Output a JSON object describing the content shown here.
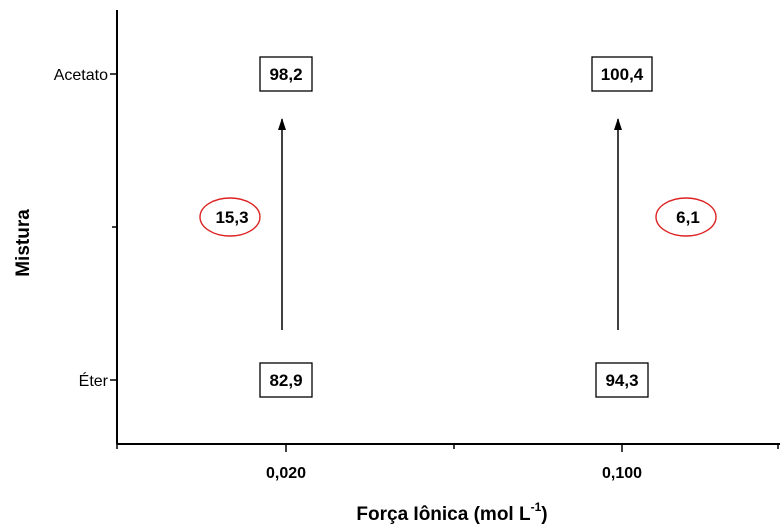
{
  "chart_data": {
    "type": "annotated-diagram",
    "xlabel": "Força Iônica (mol L",
    "xlabel_sup": "-1",
    "xlabel_close": ")",
    "ylabel": "Mistura",
    "x_categories": [
      "0,020",
      "0,100"
    ],
    "y_categories": [
      "Éter",
      "Acetato"
    ],
    "boxes": [
      {
        "x": "0,020",
        "y": "Acetato",
        "value": "98,2"
      },
      {
        "x": "0,100",
        "y": "Acetato",
        "value": "100,4"
      },
      {
        "x": "0,020",
        "y": "Éter",
        "value": "82,9"
      },
      {
        "x": "0,100",
        "y": "Éter",
        "value": "94,3"
      }
    ],
    "arrows": [
      {
        "x": "0,020",
        "from": "Éter",
        "to": "Acetato",
        "label": "15,3",
        "label_side": "left"
      },
      {
        "x": "0,100",
        "from": "Éter",
        "to": "Acetato",
        "label": "6,1",
        "label_side": "right"
      }
    ],
    "colors": {
      "ellipse": "#dd2222",
      "axis": "#000000"
    }
  }
}
